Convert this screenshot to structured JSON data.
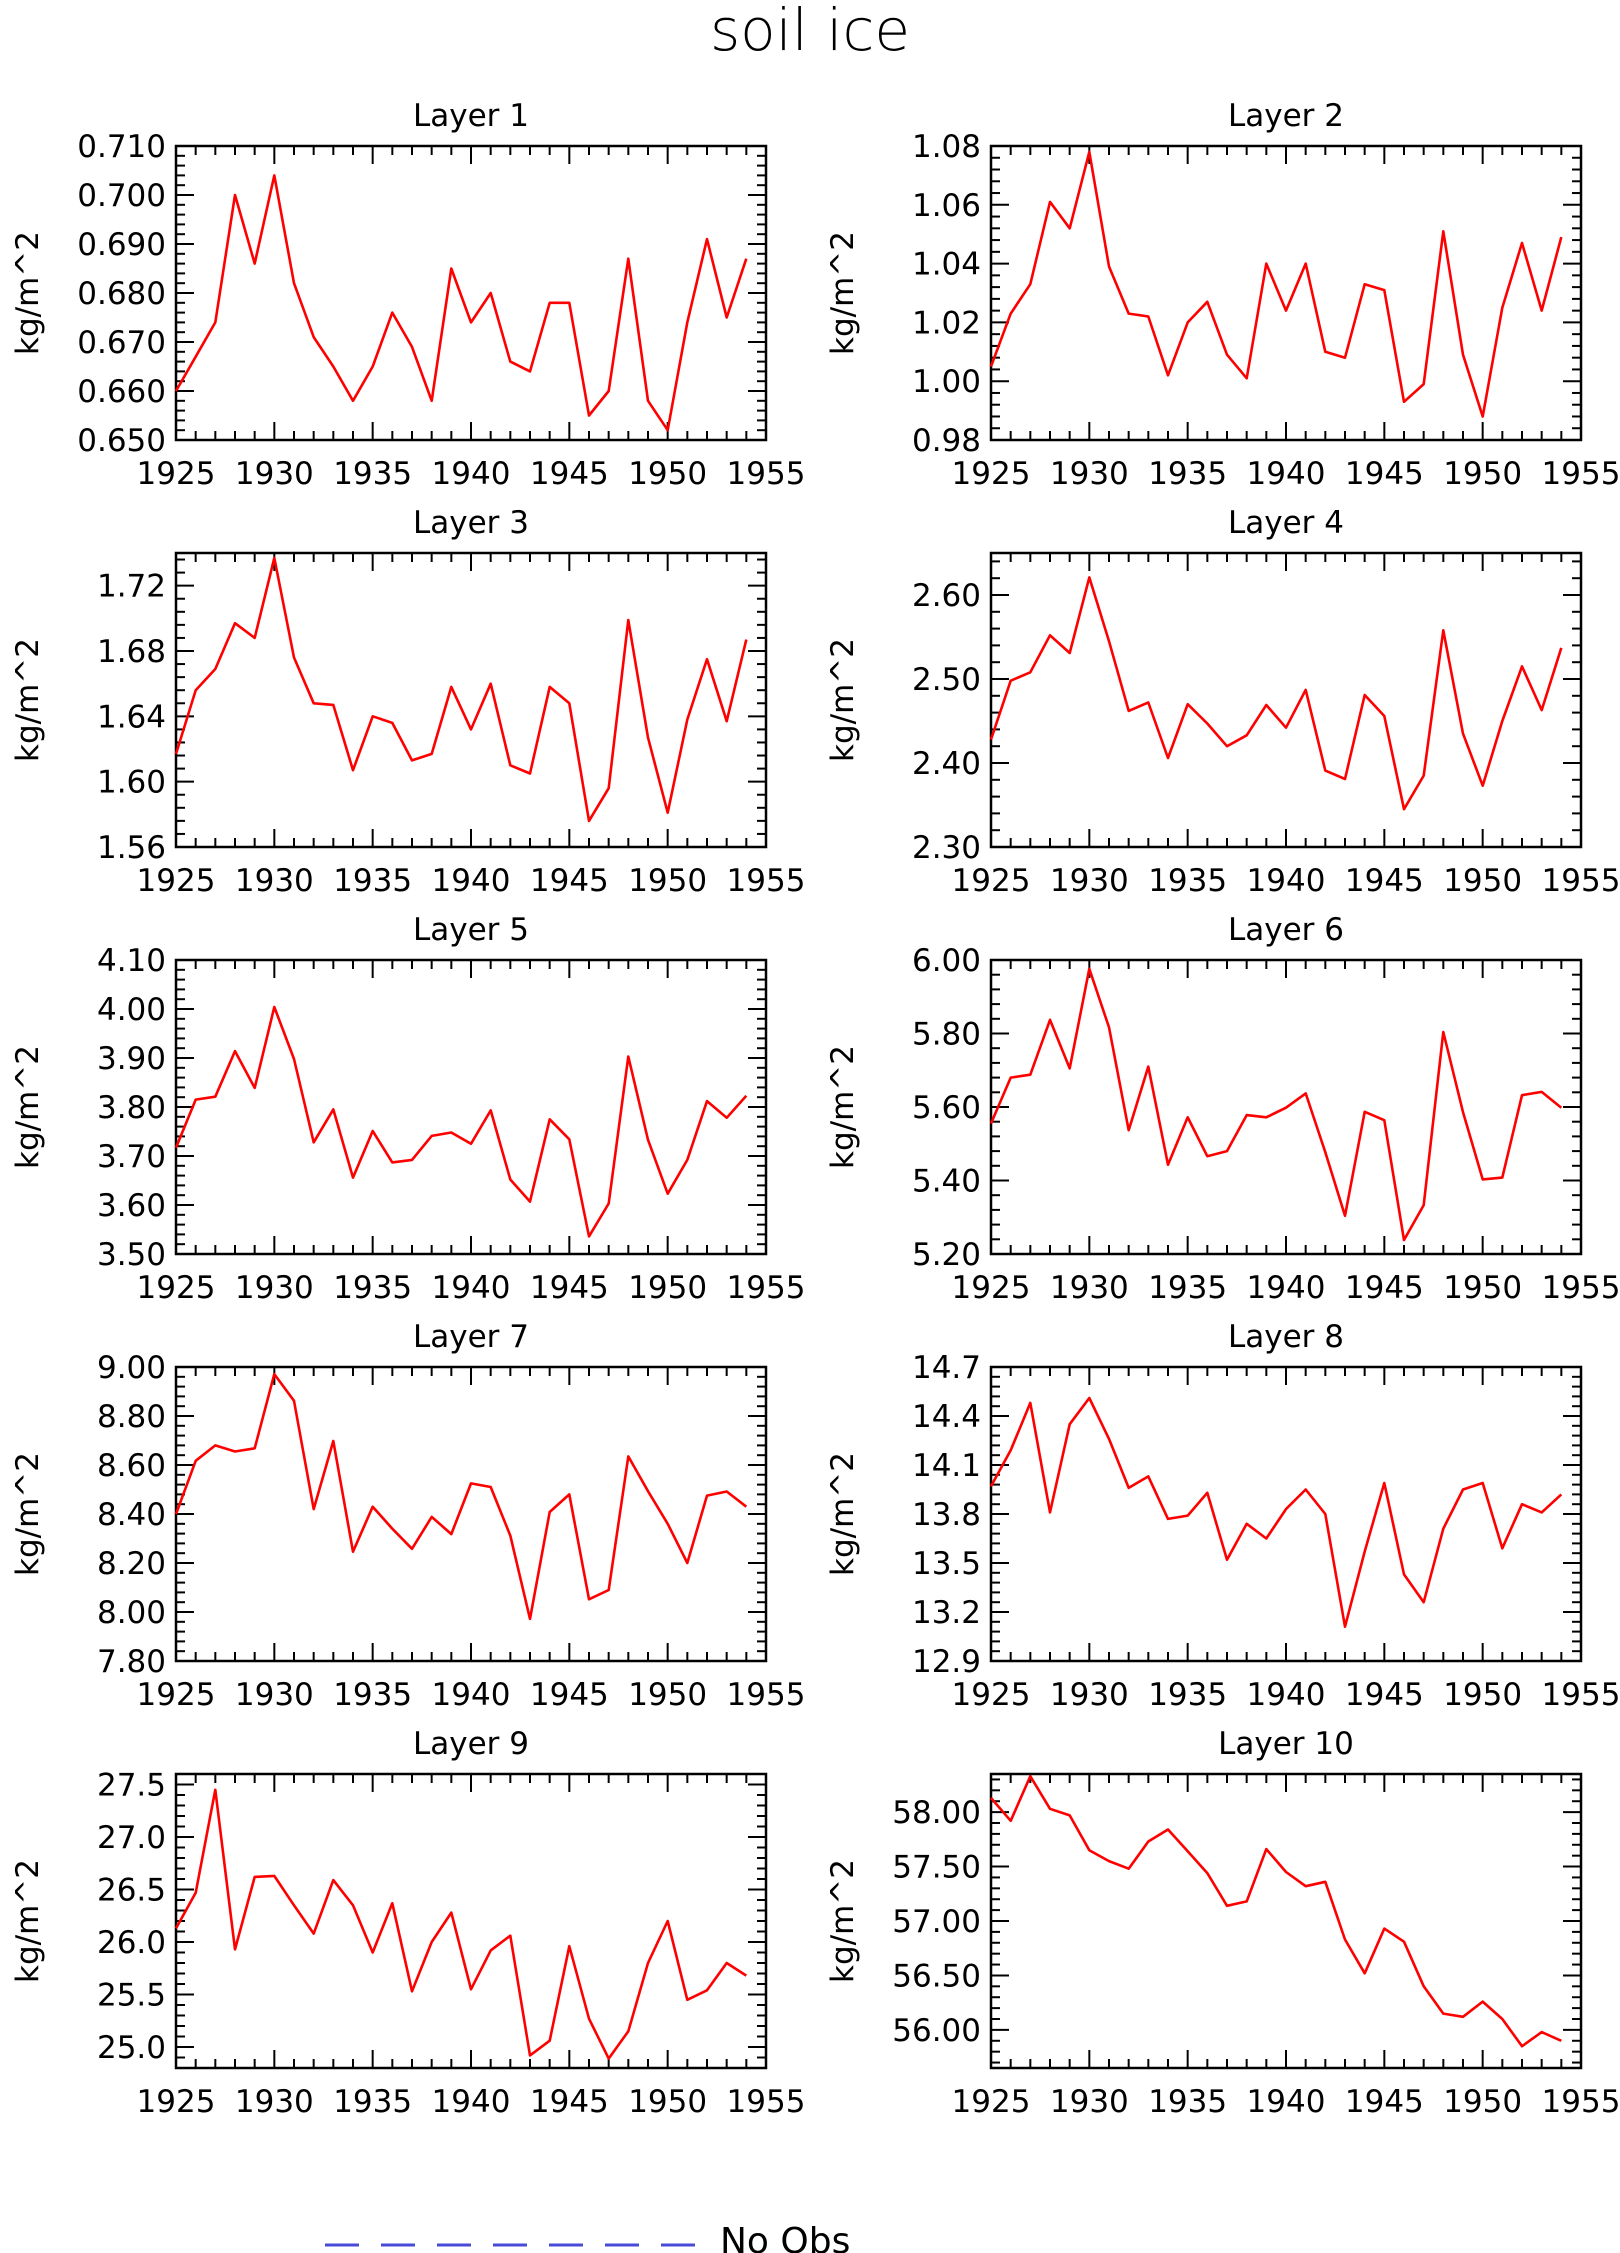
{
  "figure": {
    "title": "soil ice",
    "legend": {
      "label": "No Obs",
      "color": "#4a4ad8",
      "style": "dashed"
    },
    "series_color": "#ff0000"
  },
  "chart_data": [
    {
      "type": "line",
      "title": "Layer 1",
      "xlabel": "",
      "ylabel": "kg/m^2",
      "xlim": [
        1925,
        1955
      ],
      "ylim": [
        0.65,
        0.71
      ],
      "xticks": [
        "1925",
        "1930",
        "1935",
        "1940",
        "1945",
        "1950",
        "1955"
      ],
      "yticks": [
        "0.650",
        "0.660",
        "0.670",
        "0.680",
        "0.690",
        "0.700",
        "0.710"
      ],
      "x": [
        1925,
        1926,
        1927,
        1928,
        1929,
        1930,
        1931,
        1932,
        1933,
        1934,
        1935,
        1936,
        1937,
        1938,
        1939,
        1940,
        1941,
        1942,
        1943,
        1944,
        1945,
        1946,
        1947,
        1948,
        1949,
        1950,
        1951,
        1952,
        1953,
        1954
      ],
      "series": [
        {
          "values": [
            0.66,
            0.667,
            0.674,
            0.7,
            0.686,
            0.704,
            0.682,
            0.671,
            0.665,
            0.658,
            0.665,
            0.676,
            0.669,
            0.658,
            0.685,
            0.674,
            0.68,
            0.666,
            0.664,
            0.678,
            0.678,
            0.655,
            0.66,
            0.687,
            0.658,
            0.652,
            0.674,
            0.691,
            0.675,
            0.687
          ]
        }
      ]
    },
    {
      "type": "line",
      "title": "Layer 2",
      "xlabel": "",
      "ylabel": "kg/m^2",
      "xlim": [
        1925,
        1955
      ],
      "ylim": [
        0.98,
        1.08
      ],
      "xticks": [
        "1925",
        "1930",
        "1935",
        "1940",
        "1945",
        "1950",
        "1955"
      ],
      "yticks": [
        "0.98",
        "1.00",
        "1.02",
        "1.04",
        "1.06",
        "1.08"
      ],
      "x": [
        1925,
        1926,
        1927,
        1928,
        1929,
        1930,
        1931,
        1932,
        1933,
        1934,
        1935,
        1936,
        1937,
        1938,
        1939,
        1940,
        1941,
        1942,
        1943,
        1944,
        1945,
        1946,
        1947,
        1948,
        1949,
        1950,
        1951,
        1952,
        1953,
        1954
      ],
      "series": [
        {
          "values": [
            1.005,
            1.023,
            1.033,
            1.061,
            1.052,
            1.078,
            1.039,
            1.023,
            1.022,
            1.002,
            1.02,
            1.027,
            1.009,
            1.001,
            1.04,
            1.024,
            1.04,
            1.01,
            1.008,
            1.033,
            1.031,
            0.993,
            0.999,
            1.051,
            1.009,
            0.988,
            1.025,
            1.047,
            1.024,
            1.049
          ]
        }
      ]
    },
    {
      "type": "line",
      "title": "Layer 3",
      "xlabel": "",
      "ylabel": "kg/m^2",
      "xlim": [
        1925,
        1955
      ],
      "ylim": [
        1.56,
        1.74
      ],
      "xticks": [
        "1925",
        "1930",
        "1935",
        "1940",
        "1945",
        "1950",
        "1955"
      ],
      "yticks": [
        "1.56",
        "1.60",
        "1.64",
        "1.68",
        "1.72"
      ],
      "x": [
        1925,
        1926,
        1927,
        1928,
        1929,
        1930,
        1931,
        1932,
        1933,
        1934,
        1935,
        1936,
        1937,
        1938,
        1939,
        1940,
        1941,
        1942,
        1943,
        1944,
        1945,
        1946,
        1947,
        1948,
        1949,
        1950,
        1951,
        1952,
        1953,
        1954
      ],
      "series": [
        {
          "values": [
            1.617,
            1.656,
            1.669,
            1.697,
            1.688,
            1.737,
            1.676,
            1.648,
            1.647,
            1.607,
            1.64,
            1.636,
            1.613,
            1.617,
            1.658,
            1.632,
            1.66,
            1.61,
            1.605,
            1.658,
            1.648,
            1.576,
            1.596,
            1.699,
            1.627,
            1.581,
            1.638,
            1.675,
            1.637,
            1.687
          ]
        }
      ]
    },
    {
      "type": "line",
      "title": "Layer 4",
      "xlabel": "",
      "ylabel": "kg/m^2",
      "xlim": [
        1925,
        1955
      ],
      "ylim": [
        2.3,
        2.65
      ],
      "xticks": [
        "1925",
        "1930",
        "1935",
        "1940",
        "1945",
        "1950",
        "1955"
      ],
      "yticks": [
        "2.30",
        "2.40",
        "2.50",
        "2.60"
      ],
      "x": [
        1925,
        1926,
        1927,
        1928,
        1929,
        1930,
        1931,
        1932,
        1933,
        1934,
        1935,
        1936,
        1937,
        1938,
        1939,
        1940,
        1941,
        1942,
        1943,
        1944,
        1945,
        1946,
        1947,
        1948,
        1949,
        1950,
        1951,
        1952,
        1953,
        1954
      ],
      "series": [
        {
          "values": [
            2.428,
            2.498,
            2.508,
            2.552,
            2.531,
            2.621,
            2.545,
            2.462,
            2.472,
            2.406,
            2.47,
            2.447,
            2.42,
            2.433,
            2.469,
            2.442,
            2.487,
            2.391,
            2.381,
            2.481,
            2.456,
            2.345,
            2.385,
            2.558,
            2.435,
            2.373,
            2.45,
            2.515,
            2.463,
            2.537
          ]
        }
      ]
    },
    {
      "type": "line",
      "title": "Layer 5",
      "xlabel": "",
      "ylabel": "kg/m^2",
      "xlim": [
        1925,
        1955
      ],
      "ylim": [
        3.5,
        4.1
      ],
      "xticks": [
        "1925",
        "1930",
        "1935",
        "1940",
        "1945",
        "1950",
        "1955"
      ],
      "yticks": [
        "3.50",
        "3.60",
        "3.70",
        "3.80",
        "3.90",
        "4.00",
        "4.10"
      ],
      "x": [
        1925,
        1926,
        1927,
        1928,
        1929,
        1930,
        1931,
        1932,
        1933,
        1934,
        1935,
        1936,
        1937,
        1938,
        1939,
        1940,
        1941,
        1942,
        1943,
        1944,
        1945,
        1946,
        1947,
        1948,
        1949,
        1950,
        1951,
        1952,
        1953,
        1954
      ],
      "series": [
        {
          "values": [
            3.717,
            3.815,
            3.821,
            3.914,
            3.839,
            4.004,
            3.898,
            3.728,
            3.795,
            3.656,
            3.751,
            3.687,
            3.692,
            3.741,
            3.748,
            3.725,
            3.793,
            3.652,
            3.607,
            3.775,
            3.734,
            3.536,
            3.603,
            3.903,
            3.733,
            3.623,
            3.692,
            3.812,
            3.778,
            3.823
          ]
        }
      ]
    },
    {
      "type": "line",
      "title": "Layer 6",
      "xlabel": "",
      "ylabel": "kg/m^2",
      "xlim": [
        1925,
        1955
      ],
      "ylim": [
        5.2,
        6.0
      ],
      "xticks": [
        "1925",
        "1930",
        "1935",
        "1940",
        "1945",
        "1950",
        "1955"
      ],
      "yticks": [
        "5.20",
        "5.40",
        "5.60",
        "5.80",
        "6.00"
      ],
      "x": [
        1925,
        1926,
        1927,
        1928,
        1929,
        1930,
        1931,
        1932,
        1933,
        1934,
        1935,
        1936,
        1937,
        1938,
        1939,
        1940,
        1941,
        1942,
        1943,
        1944,
        1945,
        1946,
        1947,
        1948,
        1949,
        1950,
        1951,
        1952,
        1953,
        1954
      ],
      "series": [
        {
          "values": [
            5.555,
            5.68,
            5.688,
            5.837,
            5.705,
            5.976,
            5.817,
            5.537,
            5.71,
            5.443,
            5.572,
            5.466,
            5.48,
            5.578,
            5.572,
            5.598,
            5.637,
            5.477,
            5.304,
            5.587,
            5.564,
            5.238,
            5.333,
            5.804,
            5.586,
            5.403,
            5.408,
            5.632,
            5.641,
            5.598
          ]
        }
      ]
    },
    {
      "type": "line",
      "title": "Layer 7",
      "xlabel": "",
      "ylabel": "kg/m^2",
      "xlim": [
        1925,
        1955
      ],
      "ylim": [
        7.8,
        9.0
      ],
      "xticks": [
        "1925",
        "1930",
        "1935",
        "1940",
        "1945",
        "1950",
        "1955"
      ],
      "yticks": [
        "7.80",
        "8.00",
        "8.20",
        "8.40",
        "8.60",
        "8.80",
        "9.00"
      ],
      "x": [
        1925,
        1926,
        1927,
        1928,
        1929,
        1930,
        1931,
        1932,
        1933,
        1934,
        1935,
        1936,
        1937,
        1938,
        1939,
        1940,
        1941,
        1942,
        1943,
        1944,
        1945,
        1946,
        1947,
        1948,
        1949,
        1950,
        1951,
        1952,
        1953,
        1954
      ],
      "series": [
        {
          "values": [
            8.4,
            8.617,
            8.68,
            8.655,
            8.668,
            8.971,
            8.862,
            8.42,
            8.698,
            8.246,
            8.43,
            8.34,
            8.258,
            8.388,
            8.318,
            8.525,
            8.51,
            8.312,
            7.972,
            8.408,
            8.48,
            8.052,
            8.09,
            8.635,
            8.493,
            8.36,
            8.2,
            8.475,
            8.492,
            8.43
          ]
        }
      ]
    },
    {
      "type": "line",
      "title": "Layer 8",
      "xlabel": "",
      "ylabel": "kg/m^2",
      "xlim": [
        1925,
        1955
      ],
      "ylim": [
        12.9,
        14.7
      ],
      "xticks": [
        "1925",
        "1930",
        "1935",
        "1940",
        "1945",
        "1950",
        "1955"
      ],
      "yticks": [
        "12.9",
        "13.2",
        "13.5",
        "13.8",
        "14.1",
        "14.4",
        "14.7"
      ],
      "x": [
        1925,
        1926,
        1927,
        1928,
        1929,
        1930,
        1931,
        1932,
        1933,
        1934,
        1935,
        1936,
        1937,
        1938,
        1939,
        1940,
        1941,
        1942,
        1943,
        1944,
        1945,
        1946,
        1947,
        1948,
        1949,
        1950,
        1951,
        1952,
        1953,
        1954
      ],
      "series": [
        {
          "values": [
            13.97,
            14.19,
            14.48,
            13.81,
            14.35,
            14.51,
            14.26,
            13.96,
            14.03,
            13.77,
            13.79,
            13.93,
            13.52,
            13.74,
            13.65,
            13.83,
            13.95,
            13.8,
            13.11,
            13.57,
            13.99,
            13.43,
            13.26,
            13.71,
            13.95,
            13.99,
            13.59,
            13.86,
            13.81,
            13.92
          ]
        }
      ]
    },
    {
      "type": "line",
      "title": "Layer 9",
      "xlabel": "",
      "ylabel": "kg/m^2",
      "xlim": [
        1925,
        1955
      ],
      "ylim": [
        24.8,
        27.6
      ],
      "xticks": [
        "1925",
        "1930",
        "1935",
        "1940",
        "1945",
        "1950",
        "1955"
      ],
      "yticks": [
        "25.0",
        "25.5",
        "26.0",
        "26.5",
        "27.0",
        "27.5"
      ],
      "x": [
        1925,
        1926,
        1927,
        1928,
        1929,
        1930,
        1931,
        1932,
        1933,
        1934,
        1935,
        1936,
        1937,
        1938,
        1939,
        1940,
        1941,
        1942,
        1943,
        1944,
        1945,
        1946,
        1947,
        1948,
        1949,
        1950,
        1951,
        1952,
        1953,
        1954
      ],
      "series": [
        {
          "values": [
            26.13,
            26.47,
            27.45,
            25.93,
            26.62,
            26.63,
            26.35,
            26.08,
            26.59,
            26.35,
            25.9,
            26.37,
            25.53,
            26.0,
            26.28,
            25.55,
            25.92,
            26.06,
            24.92,
            25.06,
            25.96,
            25.27,
            24.89,
            25.15,
            25.8,
            26.2,
            25.45,
            25.54,
            25.8,
            25.68
          ]
        }
      ]
    },
    {
      "type": "line",
      "title": "Layer 10",
      "xlabel": "",
      "ylabel": "kg/m^2",
      "xlim": [
        1925,
        1955
      ],
      "ylim": [
        55.65,
        58.35
      ],
      "xticks": [
        "1925",
        "1930",
        "1935",
        "1940",
        "1945",
        "1950",
        "1955"
      ],
      "yticks": [
        "56.00",
        "56.50",
        "57.00",
        "57.50",
        "58.00"
      ],
      "x": [
        1925,
        1926,
        1927,
        1928,
        1929,
        1930,
        1931,
        1932,
        1933,
        1934,
        1935,
        1936,
        1937,
        1938,
        1939,
        1940,
        1941,
        1942,
        1943,
        1944,
        1945,
        1946,
        1947,
        1948,
        1949,
        1950,
        1951,
        1952,
        1953,
        1954
      ],
      "series": [
        {
          "values": [
            58.13,
            57.92,
            58.33,
            58.03,
            57.97,
            57.65,
            57.55,
            57.48,
            57.73,
            57.84,
            57.64,
            57.44,
            57.14,
            57.18,
            57.66,
            57.45,
            57.32,
            57.36,
            56.83,
            56.52,
            56.93,
            56.81,
            56.4,
            56.15,
            56.12,
            56.26,
            56.1,
            55.85,
            55.98,
            55.9
          ]
        }
      ]
    }
  ]
}
